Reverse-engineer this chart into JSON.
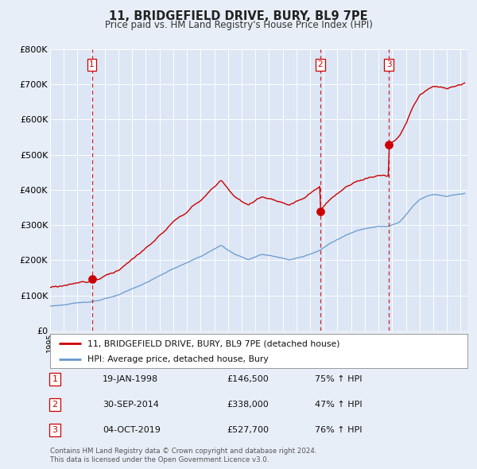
{
  "title": "11, BRIDGEFIELD DRIVE, BURY, BL9 7PE",
  "subtitle": "Price paid vs. HM Land Registry's House Price Index (HPI)",
  "background_color": "#e8eef7",
  "plot_bg_color": "#dce6f5",
  "legend_label_red": "11, BRIDGEFIELD DRIVE, BURY, BL9 7PE (detached house)",
  "legend_label_blue": "HPI: Average price, detached house, Bury",
  "footer1": "Contains HM Land Registry data © Crown copyright and database right 2024.",
  "footer2": "This data is licensed under the Open Government Licence v3.0.",
  "sale_dates": [
    1998.05,
    2014.75,
    2019.75
  ],
  "sale_prices": [
    146500,
    338000,
    527700
  ],
  "sale_labels": [
    "1",
    "2",
    "3"
  ],
  "sale_info": [
    {
      "num": "1",
      "date": "19-JAN-1998",
      "price": "£146,500",
      "hpi": "75% ↑ HPI"
    },
    {
      "num": "2",
      "date": "30-SEP-2014",
      "price": "£338,000",
      "hpi": "47% ↑ HPI"
    },
    {
      "num": "3",
      "date": "04-OCT-2019",
      "price": "£527,700",
      "hpi": "76% ↑ HPI"
    }
  ],
  "xmin": 1995.0,
  "xmax": 2025.5,
  "ymin": 0,
  "ymax": 800000,
  "red_line_color": "#cc0000",
  "blue_line_color": "#6699cc",
  "dashed_line_color": "#cc0000",
  "grid_color": "#ffffff",
  "ytick_labels": [
    "£0",
    "£100K",
    "£200K",
    "£300K",
    "£400K",
    "£500K",
    "£600K",
    "£700K",
    "£800K"
  ],
  "ytick_values": [
    0,
    100000,
    200000,
    300000,
    400000,
    500000,
    600000,
    700000,
    800000
  ]
}
